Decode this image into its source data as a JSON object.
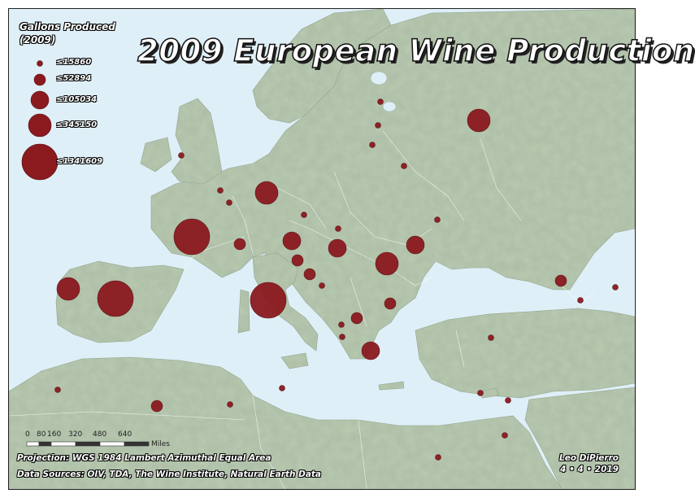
{
  "title": "2009 European Wine Production",
  "legend": {
    "title_line1": "Gallons Produced",
    "title_line2": "(2009)",
    "classes": [
      "≤15860",
      "≤52894",
      "≤105034",
      "≤345150",
      "≤1341609"
    ]
  },
  "scale_bar": {
    "ticks": [
      "0",
      "80",
      "160",
      "320",
      "480",
      "640"
    ],
    "unit": "Miles"
  },
  "projection_text": "Projection: WGS 1984 Lambert Azimuthal Equal Area",
  "sources_text": "Data Sources: OIV, TDA, The Wine Institute, Natural Earth Data",
  "author": "Leo DiPierro",
  "date": "4 • 4 • 2019",
  "colors": {
    "sea": "#dfeff8",
    "land": "#b9cbb1",
    "symbol": "#8b1a1f"
  }
}
